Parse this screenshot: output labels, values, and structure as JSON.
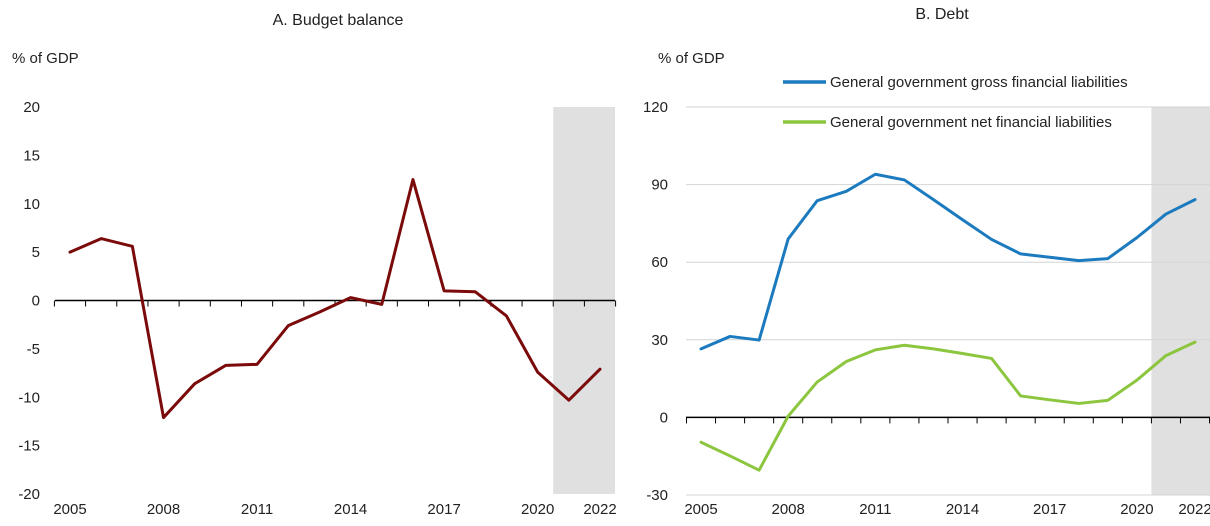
{
  "colors": {
    "budget_line": "#7B0A0A",
    "gross_line": "#1C7ABF",
    "net_line": "#8CC63F",
    "projection_shade": "#E0E0E0",
    "axis": "#000000",
    "gridline": "#D4D4D4",
    "text": "#222222"
  },
  "chart_data": [
    {
      "type": "line",
      "title": "A. Budget balance",
      "ylabel": "% of GDP",
      "xlabel": "",
      "x": [
        2005,
        2006,
        2007,
        2008,
        2009,
        2010,
        2011,
        2012,
        2013,
        2014,
        2015,
        2016,
        2017,
        2018,
        2019,
        2020,
        2021,
        2022
      ],
      "xticks": [
        "2005",
        "2008",
        "2011",
        "2014",
        "2017",
        "2020",
        "2022"
      ],
      "yticks": [
        "20",
        "15",
        "10",
        "5",
        "0",
        "-5",
        "-10",
        "-15",
        "-20"
      ],
      "ylim": [
        -20,
        20
      ],
      "grid": false,
      "projection_from": 2021,
      "series": [
        {
          "values": [
            5.0,
            6.4,
            5.6,
            -12.1,
            -8.6,
            -6.7,
            -6.6,
            -2.6,
            -1.2,
            0.3,
            -0.4,
            12.5,
            1.0,
            0.9,
            -1.6,
            -7.4,
            -10.3,
            -7.1
          ]
        }
      ]
    },
    {
      "type": "line",
      "title": "B. Debt",
      "ylabel": "% of GDP",
      "xlabel": "",
      "x": [
        2005,
        2006,
        2007,
        2008,
        2009,
        2010,
        2011,
        2012,
        2013,
        2014,
        2015,
        2016,
        2017,
        2018,
        2019,
        2020,
        2021,
        2022
      ],
      "xticks": [
        "2005",
        "2008",
        "2011",
        "2014",
        "2017",
        "2020",
        "2022"
      ],
      "yticks": [
        "120",
        "90",
        "60",
        "30",
        "0",
        "-30"
      ],
      "ylim": [
        -30,
        120
      ],
      "grid": true,
      "legend": "top",
      "projection_from": 2021,
      "series": [
        {
          "name": "General government gross financial liabilities",
          "values": [
            26.5,
            31.3,
            29.9,
            69.0,
            83.8,
            87.4,
            94.0,
            91.8,
            84.2,
            76.4,
            68.8,
            63.2,
            61.9,
            60.6,
            61.4,
            69.5,
            78.6,
            84.2
          ]
        },
        {
          "name": "General government net financial liabilities",
          "values": [
            -9.6,
            -14.9,
            -20.4,
            0.5,
            13.7,
            21.6,
            26.1,
            27.9,
            26.5,
            24.7,
            22.8,
            8.3,
            6.8,
            5.4,
            6.6,
            14.4,
            23.9,
            29.1
          ]
        }
      ]
    }
  ]
}
